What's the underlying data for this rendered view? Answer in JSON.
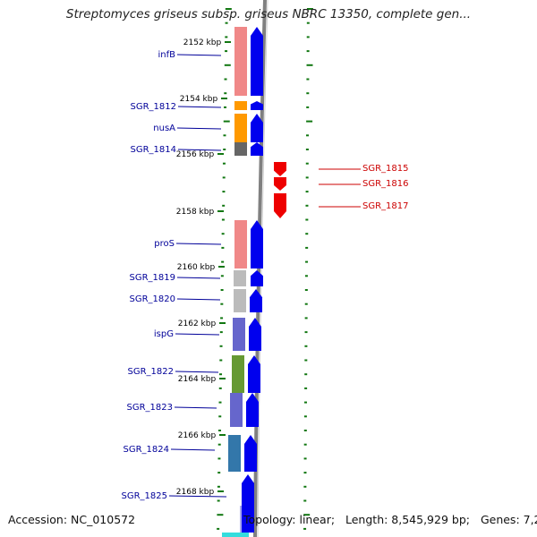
{
  "title": "Streptomyces griseus subsp. griseus NBRC 13350, complete gen...",
  "footer": {
    "accession": "Accession: NC_010572",
    "topology": "Topology: linear;",
    "length": "Length: 8,545,929 bp;",
    "genes": "Genes: 7,222"
  },
  "colors": {
    "forward_strand": "#0000ee",
    "reverse_strand": "#ee0000",
    "backbone": "#808080",
    "tick": "#117711",
    "forward_label": "#000099",
    "reverse_label": "#cc0000"
  },
  "ruler": {
    "unit": "kbp",
    "ticks": [
      "2152 kbp",
      "2154 kbp",
      "2156 kbp",
      "2158 kbp",
      "2160 kbp",
      "2162 kbp",
      "2164 kbp",
      "2166 kbp",
      "2168 kbp"
    ]
  },
  "forward_genes": [
    {
      "name": "infB",
      "color": "#f08888"
    },
    {
      "name": "SGR_1812",
      "color": "#ff9900"
    },
    {
      "name": "nusA",
      "color": "#ff9900"
    },
    {
      "name": "SGR_1814",
      "color": "#666666"
    },
    {
      "name": "proS",
      "color": "#f08888"
    },
    {
      "name": "SGR_1819",
      "color": "#bbbbbb"
    },
    {
      "name": "SGR_1820",
      "color": "#bbbbbb"
    },
    {
      "name": "ispG",
      "color": "#6666cc"
    },
    {
      "name": "SGR_1822",
      "color": "#669933"
    },
    {
      "name": "SGR_1823",
      "color": "#6666cc"
    },
    {
      "name": "SGR_1824",
      "color": "#3377aa"
    },
    {
      "name": "SGR_1825",
      "color": "#aaaaee"
    }
  ],
  "reverse_genes": [
    {
      "name": "SGR_1815"
    },
    {
      "name": "SGR_1816"
    },
    {
      "name": "SGR_1817"
    }
  ]
}
